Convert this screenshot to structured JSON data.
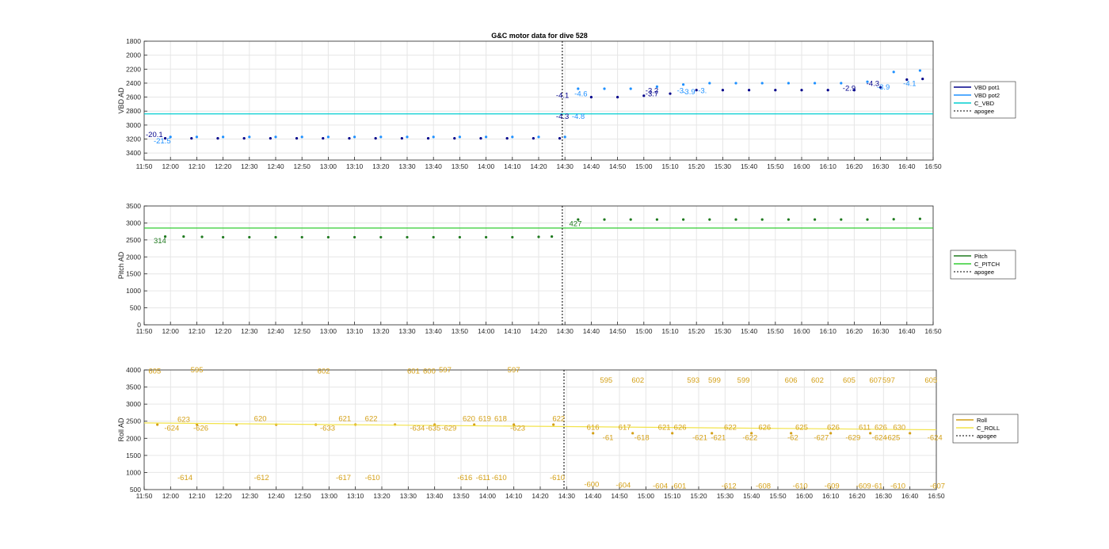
{
  "figure": {
    "title": "G&C motor data for dive 528"
  },
  "colors": {
    "vbd_pot1": "#00008b",
    "vbd_pot2": "#1e90ff",
    "c_vbd": "#00ced1",
    "pitch": "#1f7a1f",
    "c_pitch": "#32cd32",
    "roll": "#d4a017",
    "c_roll": "#f2e34a",
    "apogee": "#000000"
  },
  "x_ticks": [
    "11:50",
    "12:00",
    "12:10",
    "12:20",
    "12:30",
    "12:40",
    "12:50",
    "13:00",
    "13:10",
    "13:20",
    "13:30",
    "13:40",
    "13:50",
    "14:00",
    "14:10",
    "14:20",
    "14:30",
    "14:40",
    "14:50",
    "15:00",
    "15:10",
    "15:20",
    "15:30",
    "15:40",
    "15:50",
    "16:00",
    "16:10",
    "16:20",
    "16:30",
    "16:40",
    "16:50"
  ],
  "chart_data": [
    {
      "type": "line",
      "ylabel": "VBD AD",
      "ylim": [
        1800,
        3500
      ],
      "y_reversed": true,
      "y_ticks": [
        1800,
        2000,
        2200,
        2400,
        2600,
        2800,
        3000,
        3200,
        3400
      ],
      "x_range_minutes": [
        0,
        300
      ],
      "grid": true,
      "legend": [
        "VBD pot1",
        "VBD pot2",
        "C_VBD",
        "apogee"
      ],
      "legend_position": "outside-right",
      "apogee_x": 159,
      "series": [
        {
          "name": "VBD pot1",
          "x": [
            8,
            18,
            28,
            38,
            48,
            58,
            68,
            78,
            88,
            98,
            108,
            118,
            128,
            138,
            148,
            158,
            170,
            180,
            190,
            200,
            210,
            220,
            230,
            240,
            250,
            260,
            270,
            280,
            290,
            296
          ],
          "y": [
            3190,
            3190,
            3190,
            3190,
            3190,
            3190,
            3190,
            3190,
            3190,
            3190,
            3190,
            3190,
            3190,
            3190,
            3190,
            3190,
            2600,
            2600,
            2580,
            2550,
            2500,
            2500,
            2500,
            2500,
            2500,
            2500,
            2500,
            2460,
            2350,
            2340
          ]
        },
        {
          "name": "VBD pot2",
          "x": [
            10,
            20,
            30,
            40,
            50,
            60,
            70,
            80,
            90,
            100,
            110,
            120,
            130,
            140,
            150,
            160,
            165,
            175,
            185,
            195,
            205,
            215,
            225,
            235,
            245,
            255,
            265,
            275,
            285,
            295
          ],
          "y": [
            3170,
            3170,
            3170,
            3170,
            3170,
            3170,
            3170,
            3170,
            3170,
            3170,
            3170,
            3170,
            3170,
            3170,
            3170,
            3170,
            2480,
            2480,
            2480,
            2450,
            2420,
            2400,
            2400,
            2400,
            2400,
            2400,
            2400,
            2380,
            2240,
            2220
          ]
        },
        {
          "name": "C_VBD",
          "x": [
            0,
            300
          ],
          "y": [
            2840,
            2840
          ]
        }
      ],
      "annotations": [
        {
          "text": "-20.1",
          "x": 0,
          "y": 3170,
          "series": "VBD pot1"
        },
        {
          "text": "-21.5",
          "x": 3,
          "y": 3260,
          "series": "VBD pot2"
        },
        {
          "text": "-4.1",
          "x": 156,
          "y": 2610,
          "series": "VBD pot1"
        },
        {
          "text": "-4.3",
          "x": 156,
          "y": 2910,
          "series": "VBD pot1"
        },
        {
          "text": "-4.6",
          "x": 163,
          "y": 2590,
          "series": "VBD pot2"
        },
        {
          "text": "-4.8",
          "x": 162,
          "y": 2910,
          "series": "VBD pot2"
        },
        {
          "text": "-3.2",
          "x": 190,
          "y": 2540,
          "series": "VBD pot1"
        },
        {
          "text": "-3.7",
          "x": 190,
          "y": 2590,
          "series": "VBD pot1"
        },
        {
          "text": "-3.",
          "x": 202,
          "y": 2540,
          "series": "VBD pot2"
        },
        {
          "text": "-3.9",
          "x": 204,
          "y": 2560,
          "series": "VBD pot2"
        },
        {
          "text": "-3.",
          "x": 210,
          "y": 2540,
          "series": "VBD pot2"
        },
        {
          "text": "-2.9",
          "x": 265,
          "y": 2510,
          "series": "VBD pot1"
        },
        {
          "text": "-4.3",
          "x": 274,
          "y": 2440,
          "series": "VBD pot1"
        },
        {
          "text": "-3.9",
          "x": 278,
          "y": 2490,
          "series": "VBD pot2"
        },
        {
          "text": "-4.1",
          "x": 288,
          "y": 2440,
          "series": "VBD pot2"
        }
      ]
    },
    {
      "type": "line",
      "ylabel": "Pitch AD",
      "ylim": [
        0,
        3500
      ],
      "y_ticks": [
        0,
        500,
        1000,
        1500,
        2000,
        2500,
        3000,
        3500
      ],
      "x_range_minutes": [
        0,
        300
      ],
      "grid": true,
      "legend": [
        "Pitch",
        "C_PITCH",
        "apogee"
      ],
      "legend_position": "outside-right",
      "apogee_x": 159,
      "series": [
        {
          "name": "Pitch",
          "x": [
            8,
            15,
            22,
            30,
            40,
            50,
            60,
            70,
            80,
            90,
            100,
            110,
            120,
            130,
            140,
            150,
            155,
            165,
            175,
            185,
            195,
            205,
            215,
            225,
            235,
            245,
            255,
            265,
            275,
            285,
            295
          ],
          "y": [
            2600,
            2600,
            2590,
            2580,
            2580,
            2580,
            2580,
            2580,
            2580,
            2580,
            2580,
            2580,
            2580,
            2580,
            2580,
            2590,
            2600,
            3100,
            3100,
            3100,
            3100,
            3100,
            3100,
            3100,
            3100,
            3100,
            3100,
            3100,
            3100,
            3110,
            3120
          ]
        },
        {
          "name": "C_PITCH",
          "x": [
            0,
            300
          ],
          "y": [
            2850,
            2850
          ]
        }
      ],
      "annotations": [
        {
          "text": "314",
          "x": 3,
          "y": 2400,
          "series": "Pitch"
        },
        {
          "text": "427",
          "x": 161,
          "y": 2900,
          "series": "Pitch"
        }
      ]
    },
    {
      "type": "line",
      "ylabel": "Roll AD",
      "ylim": [
        500,
        4000
      ],
      "y_ticks": [
        500,
        1000,
        1500,
        2000,
        2500,
        3000,
        3500,
        4000
      ],
      "x_range_minutes": [
        0,
        300
      ],
      "grid": true,
      "legend": [
        "Roll",
        "C_ROLL",
        "apogee"
      ],
      "legend_position": "outside-right",
      "apogee_x": 159,
      "series": [
        {
          "name": "Roll",
          "x": [
            5,
            20,
            35,
            50,
            65,
            80,
            95,
            110,
            125,
            140,
            155,
            170,
            185,
            200,
            215,
            230,
            245,
            260,
            275,
            290
          ],
          "y": [
            2400,
            2400,
            2400,
            2400,
            2400,
            2400,
            2400,
            2400,
            2400,
            2400,
            2400,
            2150,
            2150,
            2150,
            2150,
            2150,
            2150,
            2150,
            2150,
            2150
          ]
        },
        {
          "name": "C_ROLL",
          "x": [
            0,
            300
          ],
          "y": [
            2450,
            2250
          ]
        }
      ],
      "annotations": [
        {
          "text": "605",
          "x": 1,
          "y": 3900
        },
        {
          "text": "-624",
          "x": 7,
          "y": 2230
        },
        {
          "text": "623",
          "x": 12,
          "y": 2480
        },
        {
          "text": "-614",
          "x": 12,
          "y": 780
        },
        {
          "text": "595",
          "x": 17,
          "y": 3930
        },
        {
          "text": "-626",
          "x": 18,
          "y": 2230
        },
        {
          "text": "620",
          "x": 41,
          "y": 2500
        },
        {
          "text": "-612",
          "x": 41,
          "y": 780
        },
        {
          "text": "602",
          "x": 65,
          "y": 3900
        },
        {
          "text": "-633",
          "x": 66,
          "y": 2230
        },
        {
          "text": "621",
          "x": 73,
          "y": 2500
        },
        {
          "text": "-617",
          "x": 72,
          "y": 780
        },
        {
          "text": "622",
          "x": 83,
          "y": 2500
        },
        {
          "text": "-610",
          "x": 83,
          "y": 780
        },
        {
          "text": "601",
          "x": 99,
          "y": 3900
        },
        {
          "text": "-634",
          "x": 100,
          "y": 2230
        },
        {
          "text": "600",
          "x": 105,
          "y": 3900
        },
        {
          "text": "-635",
          "x": 106,
          "y": 2230
        },
        {
          "text": "597",
          "x": 111,
          "y": 3930
        },
        {
          "text": "-629",
          "x": 112,
          "y": 2230
        },
        {
          "text": "620",
          "x": 120,
          "y": 2500
        },
        {
          "text": "-616",
          "x": 118,
          "y": 780
        },
        {
          "text": "619",
          "x": 126,
          "y": 2500
        },
        {
          "text": "-611",
          "x": 125,
          "y": 780
        },
        {
          "text": "618",
          "x": 132,
          "y": 2500
        },
        {
          "text": "-610",
          "x": 131,
          "y": 780
        },
        {
          "text": "597",
          "x": 137,
          "y": 3930
        },
        {
          "text": "-623",
          "x": 138,
          "y": 2230
        },
        {
          "text": "622",
          "x": 154,
          "y": 2500
        },
        {
          "text": "-610",
          "x": 153,
          "y": 780
        },
        {
          "text": "616",
          "x": 167,
          "y": 2250
        },
        {
          "text": "-600",
          "x": 166,
          "y": 580
        },
        {
          "text": "595",
          "x": 172,
          "y": 3630
        },
        {
          "text": "-61",
          "x": 173,
          "y": 1950
        },
        {
          "text": "617",
          "x": 179,
          "y": 2250
        },
        {
          "text": "-604",
          "x": 178,
          "y": 560
        },
        {
          "text": "602",
          "x": 184,
          "y": 3630
        },
        {
          "text": "-618",
          "x": 185,
          "y": 1950
        },
        {
          "text": "621",
          "x": 194,
          "y": 2250
        },
        {
          "text": "-604",
          "x": 192,
          "y": 540
        },
        {
          "text": "626",
          "x": 200,
          "y": 2250
        },
        {
          "text": "-601",
          "x": 199,
          "y": 540
        },
        {
          "text": "593",
          "x": 205,
          "y": 3630
        },
        {
          "text": "-621",
          "x": 207,
          "y": 1950
        },
        {
          "text": "599",
          "x": 213,
          "y": 3630
        },
        {
          "text": "-621",
          "x": 214,
          "y": 1950
        },
        {
          "text": "622",
          "x": 219,
          "y": 2250
        },
        {
          "text": "-612",
          "x": 218,
          "y": 540
        },
        {
          "text": "599",
          "x": 224,
          "y": 3630
        },
        {
          "text": "-622",
          "x": 226,
          "y": 1950
        },
        {
          "text": "626",
          "x": 232,
          "y": 2250
        },
        {
          "text": "-608",
          "x": 231,
          "y": 540
        },
        {
          "text": "606",
          "x": 242,
          "y": 3630
        },
        {
          "text": "-62",
          "x": 243,
          "y": 1950
        },
        {
          "text": "625",
          "x": 246,
          "y": 2250
        },
        {
          "text": "-610",
          "x": 245,
          "y": 540
        },
        {
          "text": "602",
          "x": 252,
          "y": 3630
        },
        {
          "text": "-627",
          "x": 253,
          "y": 1950
        },
        {
          "text": "626",
          "x": 258,
          "y": 2250
        },
        {
          "text": "-609",
          "x": 257,
          "y": 540
        },
        {
          "text": "605",
          "x": 264,
          "y": 3630
        },
        {
          "text": "-629",
          "x": 265,
          "y": 1950
        },
        {
          "text": "611",
          "x": 270,
          "y": 2250
        },
        {
          "text": "-609",
          "x": 269,
          "y": 540
        },
        {
          "text": "607",
          "x": 274,
          "y": 3630
        },
        {
          "text": "-624",
          "x": 275,
          "y": 1950
        },
        {
          "text": "626",
          "x": 276,
          "y": 2250
        },
        {
          "text": "-61",
          "x": 275,
          "y": 540
        },
        {
          "text": "597",
          "x": 279,
          "y": 3630
        },
        {
          "text": "-625",
          "x": 280,
          "y": 1950
        },
        {
          "text": "630",
          "x": 283,
          "y": 2250
        },
        {
          "text": "-610",
          "x": 282,
          "y": 540
        },
        {
          "text": "605",
          "x": 295,
          "y": 3630
        },
        {
          "text": "-624",
          "x": 296,
          "y": 1950
        },
        {
          "text": "-607",
          "x": 297,
          "y": 540
        }
      ]
    }
  ]
}
